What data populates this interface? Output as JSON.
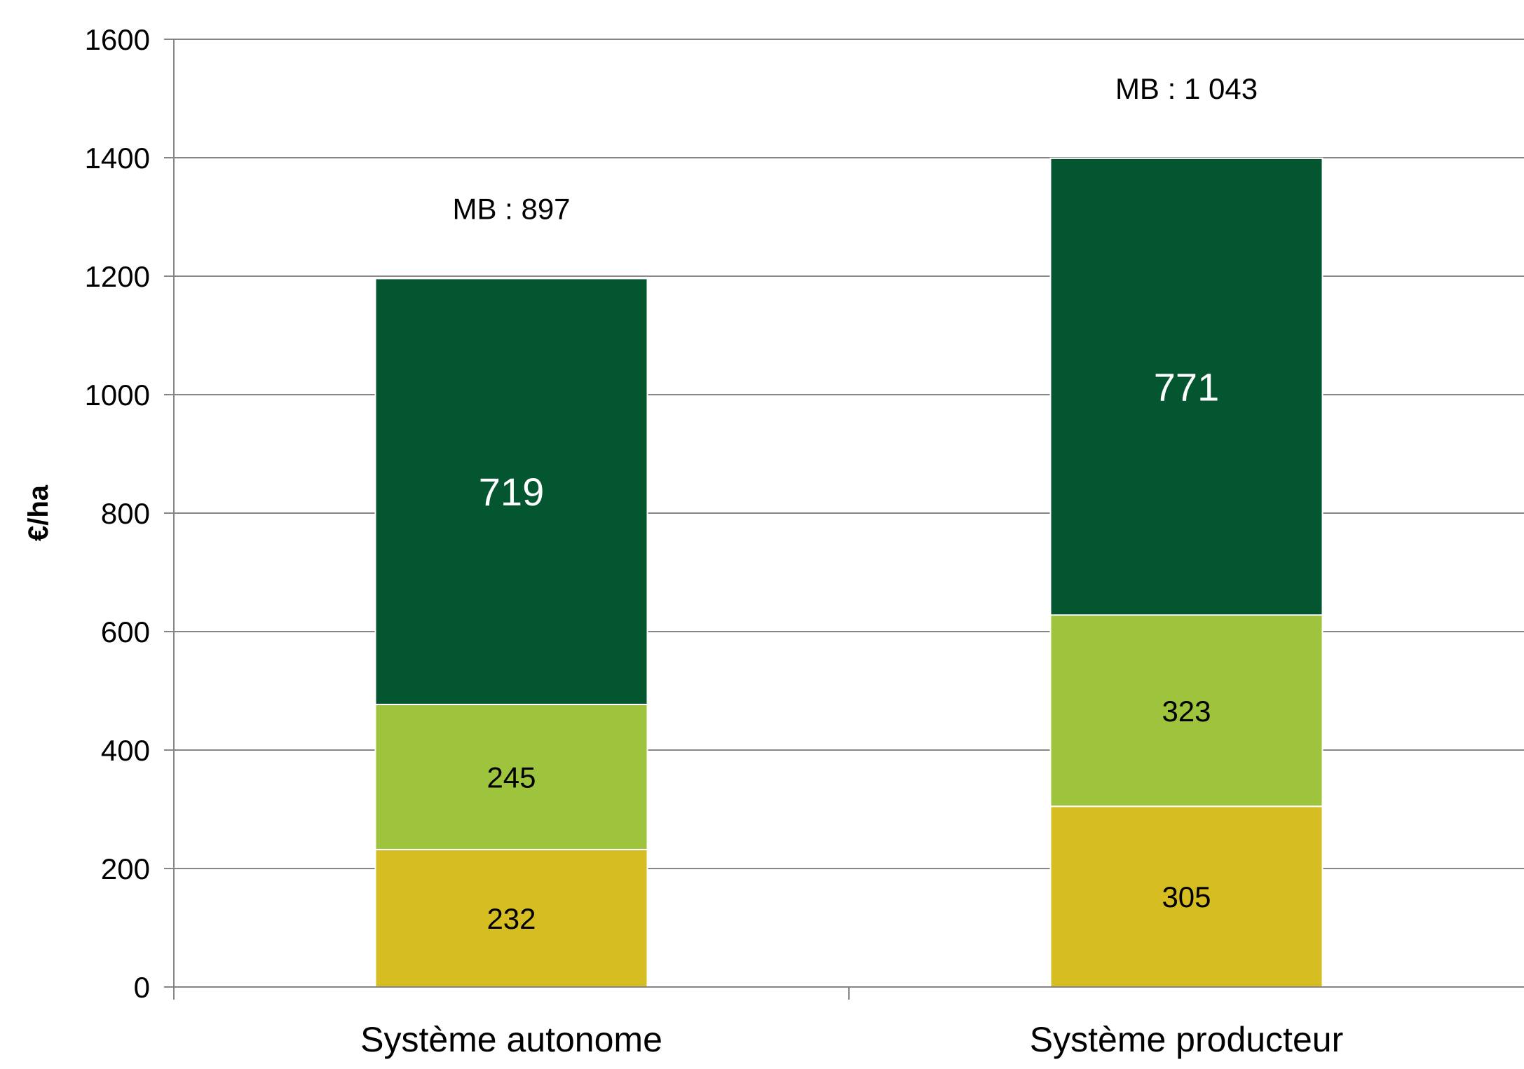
{
  "chart_data": {
    "type": "bar",
    "stacked": true,
    "categories": [
      "Système autonome",
      "Système producteur"
    ],
    "series": [
      {
        "values": [
          232,
          305
        ],
        "color": "#d6bd22",
        "label_color": "#000000"
      },
      {
        "values": [
          245,
          323
        ],
        "color": "#9dc43c",
        "label_color": "#000000"
      },
      {
        "values": [
          719,
          771
        ],
        "color": "#035630",
        "label_color": "#ffffff"
      }
    ],
    "totals_labels": [
      "MB : 897",
      "MB : 1 043"
    ],
    "ylabel": "€/ha",
    "ylim": [
      0,
      1600
    ],
    "yticks": [
      0,
      200,
      400,
      600,
      800,
      1000,
      1200,
      1400,
      1600
    ],
    "grid": true
  }
}
